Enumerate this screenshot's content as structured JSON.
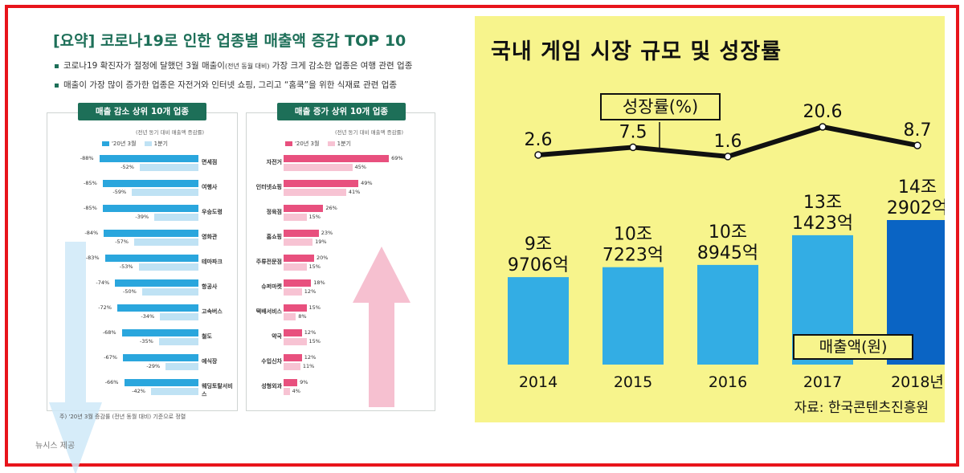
{
  "left_panel": {
    "title": "[요약] 코로나19로 인한 업종별 매출액 증감 TOP 10",
    "bullet1_main": "코로나19 확진자가 절정에 달했던 3월 매출이",
    "bullet1_small": "(전년 동월 대비)",
    "bullet1_rest": " 가장 크게 감소한 업종은 여행 관련 업종",
    "bullet2": "매출이 가장 많이 증가한 업종은 자전거와 인터넷 쇼핑, 그리고 “홈쿡”을 위한 식재료 관련 업종",
    "decrease_box_title": "매출 감소 상위 10개 업종",
    "increase_box_title": "매출 증가 상위 10개 업종",
    "box_note": "(전년 동기 대비 매출액 증감률)",
    "legend_march": "'20년 3월",
    "legend_q1": "1분기",
    "footnote": "주) '20년 3월 증감률 (전년 동월 대비) 기준으로 정렬",
    "credit": "뉴시스 제공",
    "colors": {
      "dec_march": "#2aa6dd",
      "dec_q1": "#bfe2f4",
      "inc_march": "#e8507e",
      "inc_q1": "#f7c3d3",
      "accent": "#1d6f58"
    }
  },
  "right_panel": {
    "title": "국내 게임 시장 규모 및 성장률",
    "growth_label": "성장률(%)",
    "sales_label": "매출액(원)",
    "source": "자료: 한국콘텐츠진흥원",
    "colors": {
      "bar": "#33ade4",
      "bar_highlight": "#0a64c4",
      "background": "#f7f48c",
      "line": "#111111"
    }
  },
  "chart_data": [
    {
      "type": "bar",
      "title": "매출 감소 상위 10개 업종",
      "categories": [
        "면세점",
        "여행사",
        "우승도령",
        "영화관",
        "테마파크",
        "항공사",
        "고속버스",
        "철도",
        "예식장",
        "웨딩토탈서비스"
      ],
      "series": [
        {
          "name": "'20년 3월",
          "values": [
            -88,
            -85,
            -85,
            -84,
            -83,
            -74,
            -72,
            -68,
            -67,
            -66
          ],
          "labels": [
            "-88%",
            "-85%",
            "-85%",
            "-84%",
            "-83%",
            "-74%",
            "-72%",
            "-68%",
            "-67%",
            "-66%"
          ]
        },
        {
          "name": "1분기",
          "values": [
            -52,
            -59,
            -39,
            -57,
            -53,
            -50,
            -34,
            -35,
            -29,
            -42
          ],
          "labels": [
            "-52%",
            "-59%",
            "-39%",
            "-57%",
            "-53%",
            "-50%",
            "-34%",
            "-35%",
            "-29%",
            "-42%"
          ]
        }
      ]
    },
    {
      "type": "bar",
      "title": "매출 증가 상위 10개 업종",
      "categories": [
        "자전거",
        "인터넷쇼핑",
        "정육점",
        "홈쇼핑",
        "주류전문점",
        "슈퍼마켓",
        "택배서비스",
        "약국",
        "수입신차",
        "성형외과"
      ],
      "series": [
        {
          "name": "'20년 3월",
          "values": [
            69,
            49,
            26,
            23,
            20,
            18,
            15,
            12,
            12,
            9
          ],
          "labels": [
            "69%",
            "49%",
            "26%",
            "23%",
            "20%",
            "18%",
            "15%",
            "12%",
            "12%",
            "9%"
          ]
        },
        {
          "name": "1분기",
          "values": [
            45,
            41,
            15,
            19,
            15,
            12,
            8,
            15,
            11,
            4
          ],
          "labels": [
            "45%",
            "41%",
            "15%",
            "19%",
            "15%",
            "12%",
            "8%",
            "15%",
            "11%",
            "4%"
          ]
        }
      ]
    },
    {
      "type": "bar",
      "title": "국내 게임 시장 규모 및 성장률",
      "categories": [
        "2014",
        "2015",
        "2016",
        "2017",
        "2018년"
      ],
      "series": [
        {
          "name": "매출액(원)",
          "values": [
            9.9706,
            10.7223,
            10.8945,
            13.1423,
            14.2902
          ],
          "labels": [
            "9조 9706억",
            "10조 7223억",
            "10조 8945억",
            "13조 1423억",
            "14조 2902억"
          ]
        }
      ]
    },
    {
      "type": "line",
      "categories": [
        "2014",
        "2015",
        "2016",
        "2017",
        "2018년"
      ],
      "series": [
        {
          "name": "성장률(%)",
          "values": [
            2.6,
            7.5,
            1.6,
            20.6,
            8.7
          ],
          "labels": [
            "2.6",
            "7.5",
            "1.6",
            "20.6",
            "8.7"
          ]
        }
      ]
    }
  ]
}
